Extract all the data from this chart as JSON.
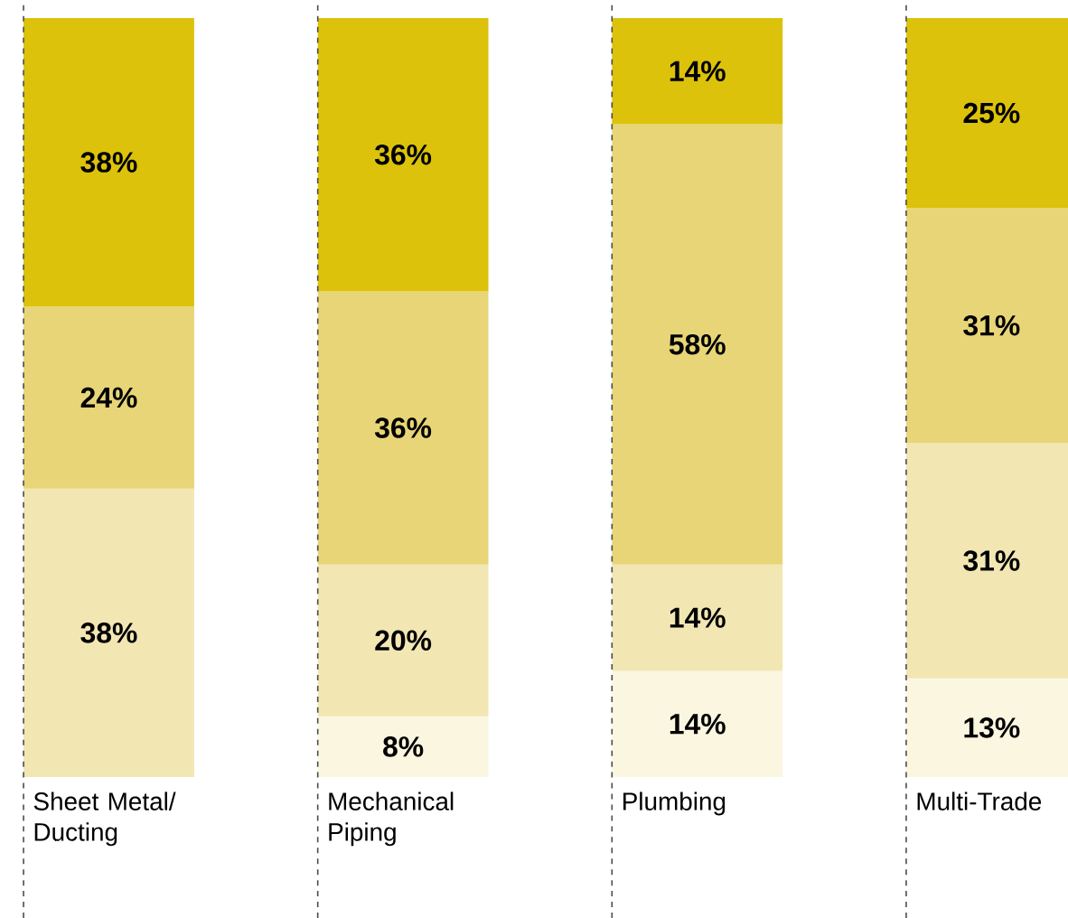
{
  "chart_data": {
    "type": "bar",
    "stacked": true,
    "categories": [
      "Sheet Metal/ Ducting",
      "Mechanical Piping",
      "Plumbing",
      "Multi-Trade"
    ],
    "ylim": [
      0,
      100
    ],
    "series": [
      {
        "color": "#faf6e0",
        "values": [
          null,
          8,
          14,
          13
        ],
        "value_labels": [
          null,
          "8%",
          "14%",
          "13%"
        ]
      },
      {
        "color": "#f2e6b3",
        "values": [
          38,
          20,
          14,
          31
        ],
        "value_labels": [
          "38%",
          "20%",
          "14%",
          "31%"
        ]
      },
      {
        "color": "#e8d577",
        "values": [
          24,
          36,
          58,
          31
        ],
        "value_labels": [
          "24%",
          "36%",
          "58%",
          "31%"
        ]
      },
      {
        "color": "#dcc20a",
        "values": [
          38,
          36,
          14,
          25
        ],
        "value_labels": [
          "38%",
          "36%",
          "14%",
          "25%"
        ]
      }
    ]
  }
}
